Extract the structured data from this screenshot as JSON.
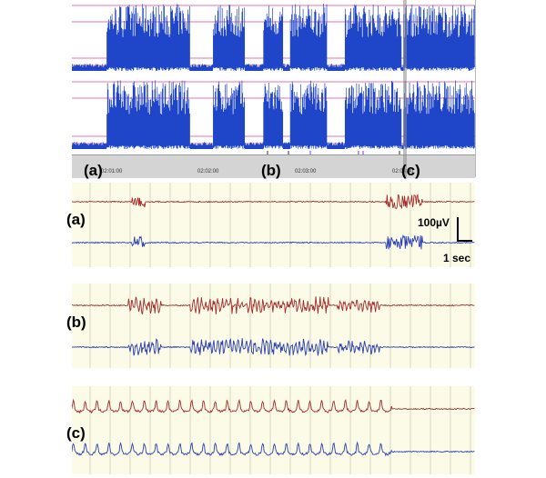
{
  "overview": {
    "time_ticks": [
      "02:01:00",
      "02:02:00",
      "02:03:00",
      "02:04:00"
    ],
    "markers": [
      {
        "label": "(a)"
      },
      {
        "label": "(b)"
      },
      {
        "label": "(c)"
      }
    ]
  },
  "panels": [
    {
      "id": "a",
      "label": "(a)"
    },
    {
      "id": "b",
      "label": "(b)"
    },
    {
      "id": "c",
      "label": "(c)"
    }
  ],
  "scale_bar": {
    "amplitude": "100µV",
    "time": "1 sec"
  },
  "colors": {
    "overview_bg": "#ffffff",
    "overview_trace": "#1f45c8",
    "overview_threshold": "#e0409a",
    "timeline_bg": "#d4d4d4",
    "panel_bg": "#fbfbe8",
    "panel_grid": "#d9d9c0",
    "trace_red": "#a42a2a",
    "trace_blue": "#2b3fb0",
    "cursor": "#8c8c8c"
  }
}
